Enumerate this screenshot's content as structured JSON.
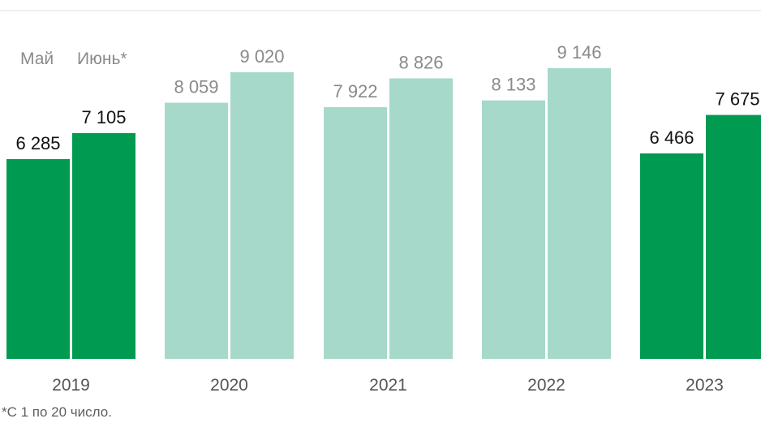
{
  "chart_data": {
    "type": "bar",
    "categories": [
      "2019",
      "2020",
      "2021",
      "2022",
      "2023"
    ],
    "series": [
      {
        "name": "Май",
        "values": [
          6285,
          8059,
          7922,
          8133,
          6466
        ]
      },
      {
        "name": "Июнь*",
        "values": [
          7105,
          9020,
          8826,
          9146,
          7675
        ]
      }
    ],
    "value_labels": [
      [
        "6 285",
        "7 105"
      ],
      [
        "8 059",
        "9 020"
      ],
      [
        "7 922",
        "8 826"
      ],
      [
        "8 133",
        "9 146"
      ],
      [
        "6 466",
        "7 675"
      ]
    ],
    "highlighted_categories": [
      "2019",
      "2023"
    ],
    "colors": {
      "highlight": "#009a50",
      "muted": "#a6d9c9",
      "label_highlight": "#111111",
      "label_muted": "#8a8a8a",
      "axis_text": "#555555",
      "top_rule": "#dcdcdc"
    },
    "legend_placement": "above first group",
    "grid": false,
    "footnote": "*С 1 по 20 число."
  }
}
